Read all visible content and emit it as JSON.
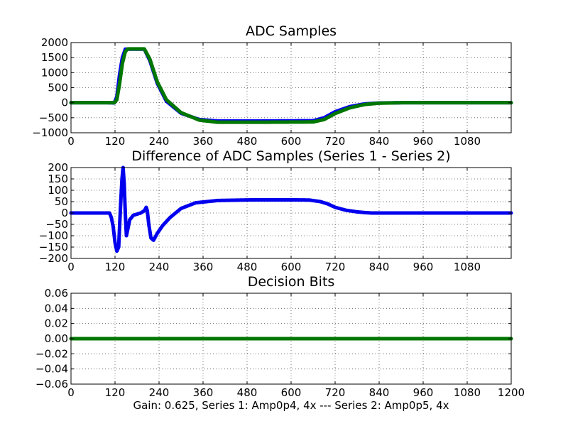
{
  "footer": "Gain: 0.625, Series 1: Amp0p4, 4x --- Series 2: Amp0p5, 4x",
  "chart_data": [
    {
      "type": "scatter",
      "title": "ADC Samples",
      "xlim": [
        0,
        1200
      ],
      "ylim": [
        -1000,
        2000
      ],
      "xticks": [
        0,
        120,
        240,
        360,
        480,
        600,
        720,
        840,
        960,
        1080
      ],
      "yticks": [
        -1000,
        -500,
        0,
        500,
        1000,
        1500,
        2000
      ],
      "xtick_labels": [
        "0",
        "120",
        "240",
        "360",
        "480",
        "600",
        "720",
        "840",
        "960",
        "1080"
      ],
      "ytick_labels": [
        "−1000",
        "−500",
        "0",
        "500",
        "1000",
        "1500",
        "2000"
      ],
      "grid": true,
      "series": [
        {
          "name": "Series 1",
          "color": "#0000ee",
          "x": [
            0,
            100,
            118,
            125,
            132,
            140,
            148,
            155,
            200,
            215,
            235,
            260,
            300,
            350,
            400,
            500,
            660,
            690,
            720,
            760,
            800,
            840,
            900,
            1200
          ],
          "y": [
            0,
            0,
            -5,
            200,
            900,
            1500,
            1780,
            1780,
            1780,
            1400,
            650,
            50,
            -350,
            -560,
            -610,
            -610,
            -600,
            -500,
            -300,
            -130,
            -40,
            -10,
            0,
            0
          ]
        },
        {
          "name": "Series 2",
          "color": "#007700",
          "x": [
            0,
            100,
            118,
            125,
            132,
            140,
            148,
            155,
            200,
            215,
            235,
            260,
            300,
            350,
            400,
            500,
            660,
            690,
            720,
            760,
            800,
            840,
            900,
            1200
          ],
          "y": [
            0,
            0,
            0,
            100,
            600,
            1300,
            1700,
            1790,
            1790,
            1450,
            700,
            100,
            -330,
            -580,
            -650,
            -650,
            -640,
            -560,
            -360,
            -170,
            -60,
            -15,
            0,
            0
          ]
        }
      ]
    },
    {
      "type": "scatter",
      "title": "Difference of ADC Samples (Series 1 - Series 2)",
      "xlim": [
        0,
        1200
      ],
      "ylim": [
        -200,
        200
      ],
      "xticks": [
        0,
        120,
        240,
        360,
        480,
        600,
        720,
        840,
        960,
        1080
      ],
      "yticks": [
        -200,
        -150,
        -100,
        -50,
        0,
        50,
        100,
        150,
        200
      ],
      "xtick_labels": [
        "0",
        "120",
        "240",
        "360",
        "480",
        "600",
        "720",
        "840",
        "960",
        "1080"
      ],
      "ytick_labels": [
        "−200",
        "−150",
        "−100",
        "−50",
        "0",
        "50",
        "100",
        "150",
        "200"
      ],
      "grid": true,
      "series": [
        {
          "name": "Series 1 - Series 2",
          "color": "#0000ee",
          "x": [
            0,
            105,
            110,
            115,
            120,
            125,
            130,
            133,
            136,
            139,
            142,
            145,
            148,
            151,
            155,
            160,
            170,
            180,
            190,
            200,
            205,
            208,
            212,
            218,
            225,
            235,
            250,
            270,
            300,
            340,
            400,
            500,
            600,
            650,
            680,
            700,
            720,
            750,
            780,
            800,
            820,
            850,
            900,
            1200
          ],
          "y": [
            0,
            0,
            -20,
            -60,
            -130,
            -168,
            -150,
            -40,
            60,
            150,
            200,
            130,
            0,
            -100,
            -70,
            -30,
            -10,
            -5,
            0,
            10,
            25,
            10,
            -50,
            -110,
            -120,
            -90,
            -55,
            -20,
            20,
            45,
            55,
            58,
            58,
            57,
            50,
            40,
            25,
            12,
            5,
            2,
            0,
            0,
            0,
            0
          ]
        }
      ]
    },
    {
      "type": "scatter",
      "title": "Decision Bits",
      "xlim": [
        0,
        1200
      ],
      "ylim": [
        -0.06,
        0.06
      ],
      "xticks": [
        0,
        120,
        240,
        360,
        480,
        600,
        720,
        840,
        960,
        1080,
        1200
      ],
      "yticks": [
        -0.06,
        -0.04,
        -0.02,
        0.0,
        0.02,
        0.04,
        0.06
      ],
      "xtick_labels": [
        "0",
        "120",
        "240",
        "360",
        "480",
        "600",
        "720",
        "840",
        "960",
        "1080",
        "1200"
      ],
      "ytick_labels": [
        "−0.06",
        "−0.04",
        "−0.02",
        "0.00",
        "0.02",
        "0.04",
        "0.06"
      ],
      "grid": true,
      "series": [
        {
          "name": "Decision Bits",
          "color": "#007700",
          "x": [
            0,
            1200
          ],
          "y": [
            0,
            0
          ]
        }
      ]
    }
  ]
}
